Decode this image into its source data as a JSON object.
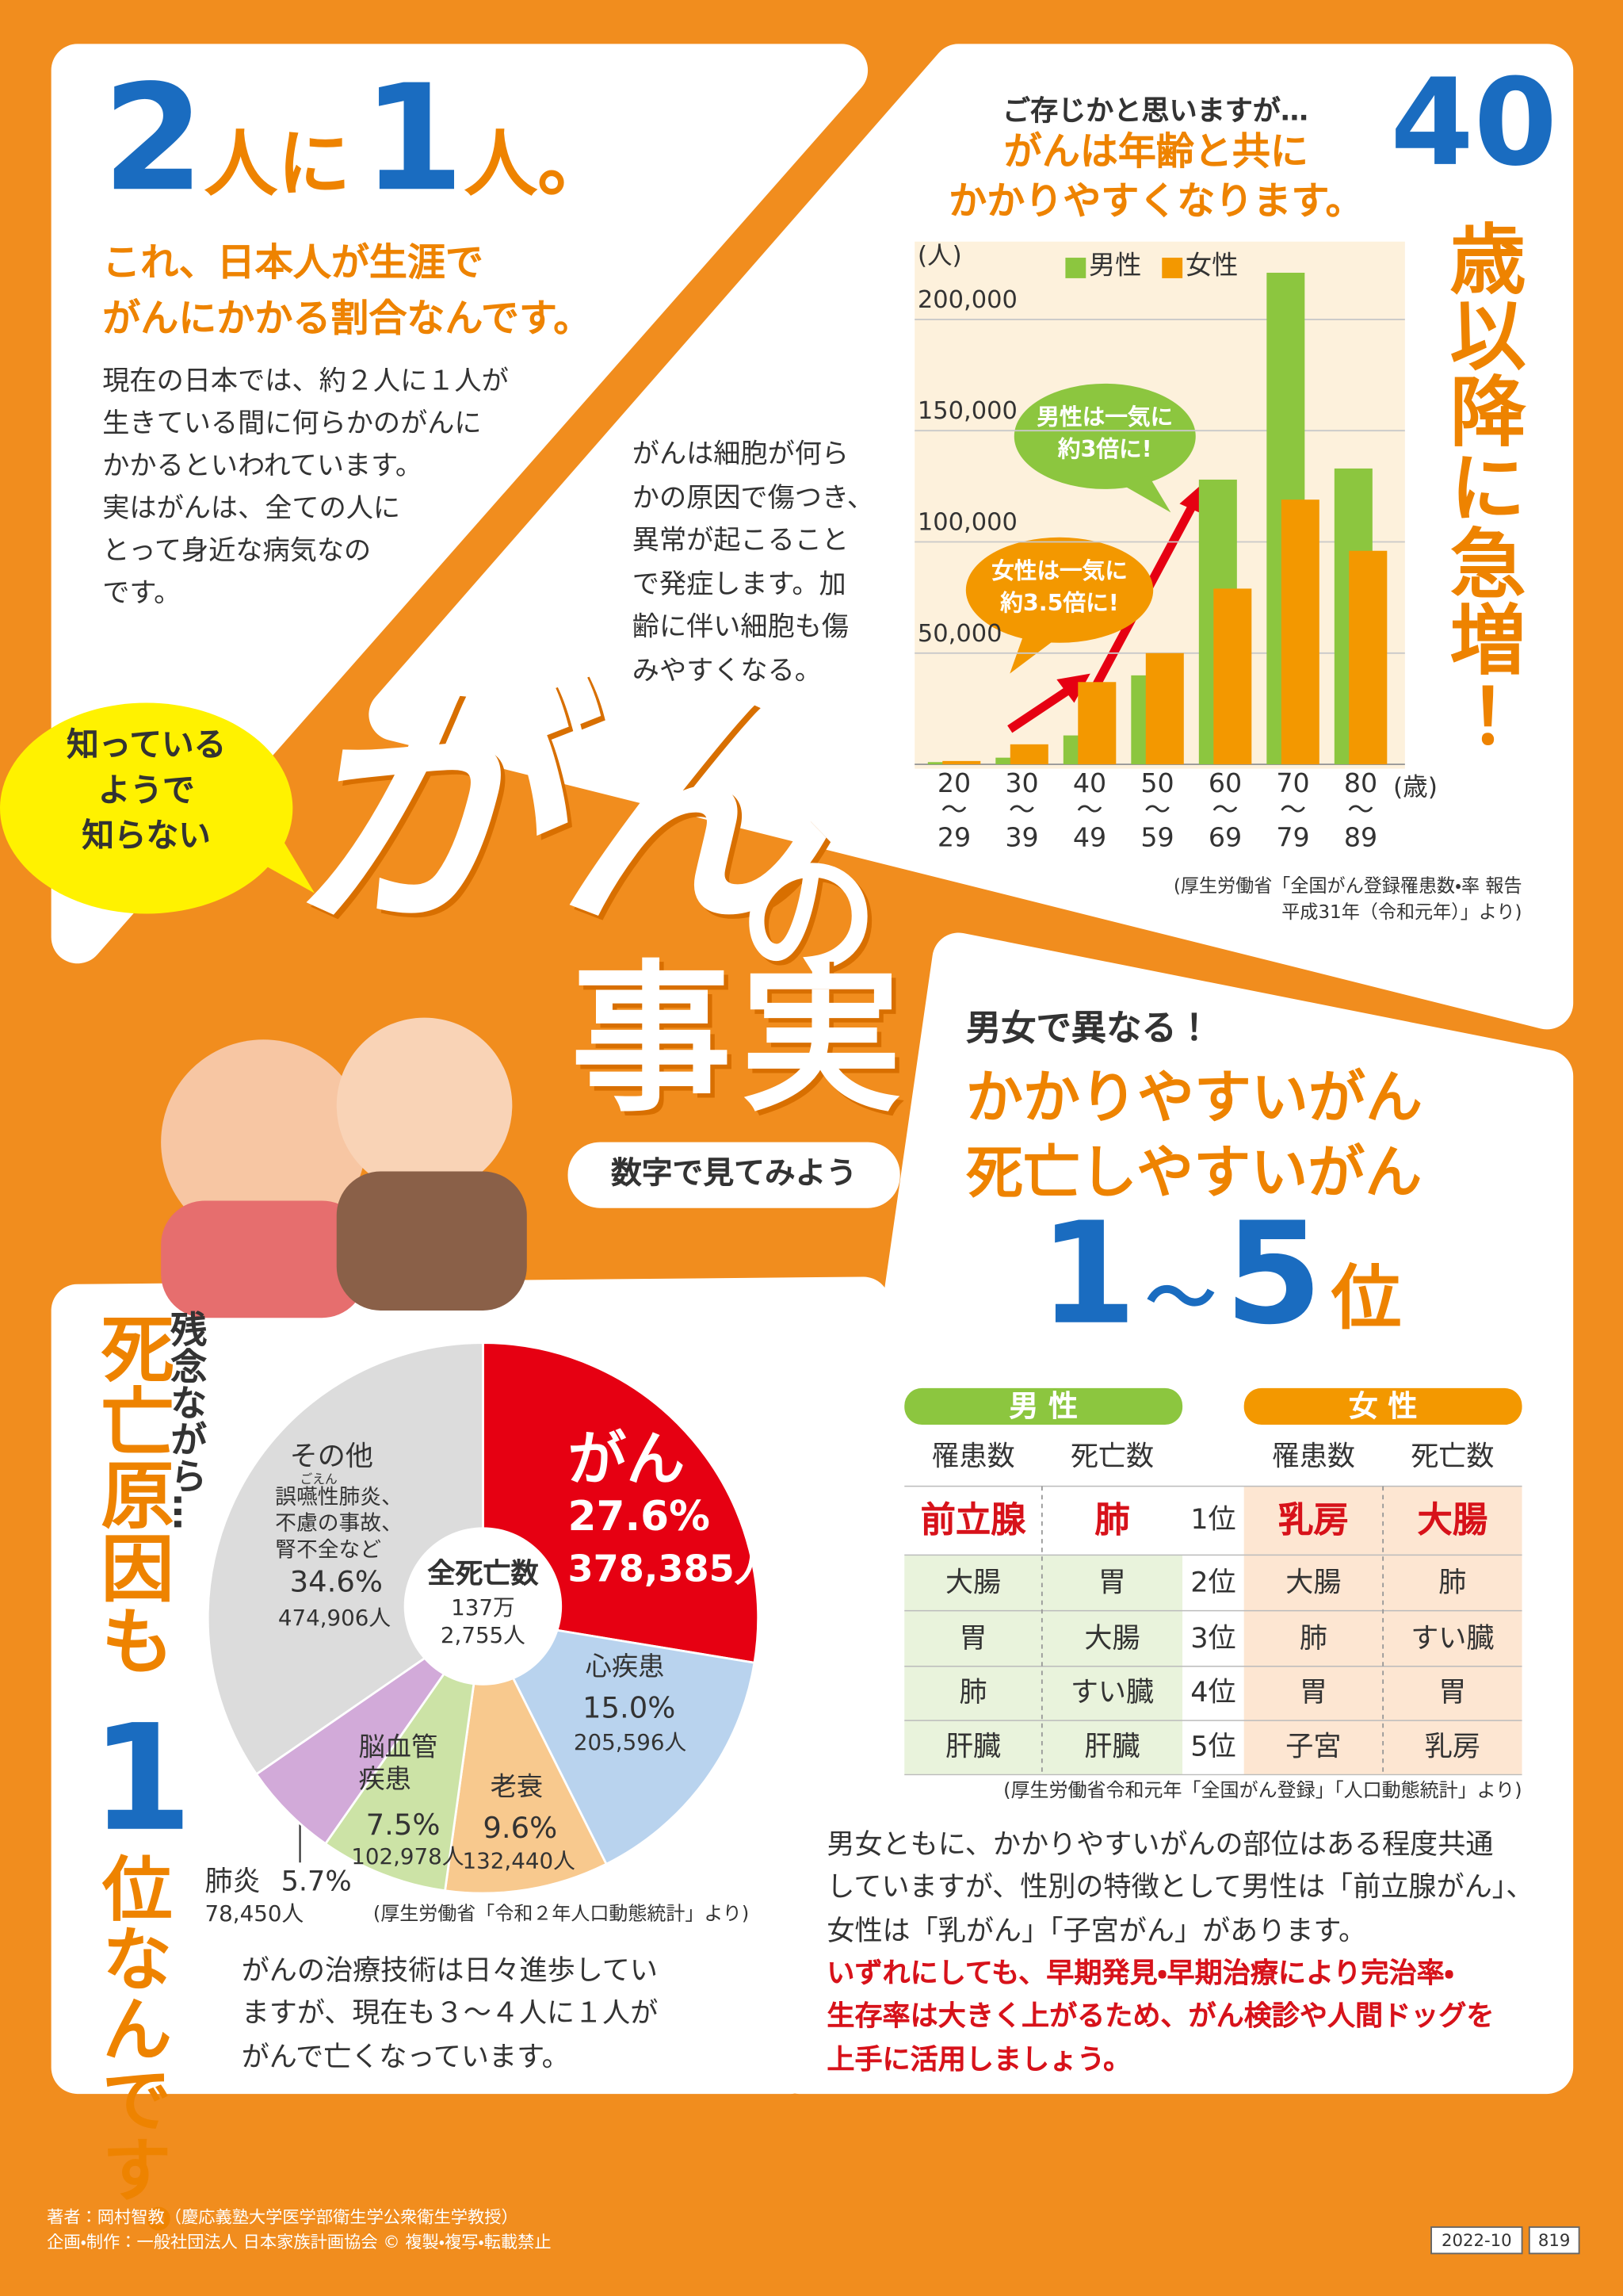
{
  "header": {
    "title_parts": [
      "2",
      "人に",
      "1",
      "人。"
    ],
    "subtitle": "これ、日本人が生涯で\nがんにかかる割合なんです。",
    "body": "現在の日本では、約２人に１人が\n生きている間に何らかのがんに\nかかるといわれています。\n実はがんは、全ての人に\nとって身近な病気なの\nです。"
  },
  "cell_note": "がんは細胞が何ら\nかの原因で傷つき、\n異常が起こること\nで発症します。加\n齢に伴い細胞も傷\nみやすくなる。",
  "age_section": {
    "lead": "ご存じかと思いますが…",
    "headline": "がんは年齢と共に\nかかりやすくなります。",
    "age": "40",
    "side": "歳以降に急増！",
    "callouts": [
      "男性は一気に\n約3倍に!",
      "女性は一気に\n約3.5倍に!"
    ],
    "source": "(厚生労働省「全国がん登録罹患数・率 報告\n平成31年（令和元年）」より)"
  },
  "title": {
    "bubble": "知っている\nようで\n知らない",
    "main": "がん",
    "particle": "の",
    "main2": "事実",
    "pill": "数字で見てみよう"
  },
  "ranking": {
    "lead": "男女で異なる！",
    "headline": "かかりやすいがん\n死亡しやすいがん",
    "range_parts": [
      "1",
      "〜",
      "5",
      "位"
    ],
    "source": "(厚生労働省令和元年「全国がん登録」「人口動態統計」より)",
    "body": "男女ともに、かかりやすいがんの部位はある程度共通\nしていますが、性別の特徴として男性は「前立腺がん」、\n女性は「乳がん」「子宮がん」があります。",
    "emphasis": "いずれにしても、早期発見・早期治療により完治率・\n生存率は大きく上がるため、がん検診や人間ドッグを\n上手に活用しましょう。"
  },
  "table": {
    "groups": [
      "男 性",
      "女 性"
    ],
    "columns": [
      "罹患数",
      "死亡数",
      "罹患数",
      "死亡数"
    ],
    "rows": [
      [
        "前立腺",
        "肺",
        "1位",
        "乳房",
        "大腸"
      ],
      [
        "大腸",
        "胃",
        "2位",
        "大腸",
        "肺"
      ],
      [
        "胃",
        "大腸",
        "3位",
        "肺",
        "すい臓"
      ],
      [
        "肺",
        "すい臓",
        "4位",
        "胃",
        "胃"
      ],
      [
        "肝臓",
        "肝臓",
        "5位",
        "子宮",
        "乳房"
      ]
    ]
  },
  "death_section": {
    "lead": "残念ながら…",
    "headline_parts": [
      "死亡原因も",
      "1",
      "位なんです。"
    ],
    "source": "(厚生労働省「令和２年人口動態統計」より)",
    "body": "がんの治療技術は日々進歩してい\nますが、現在も３～４人に１人が\nがんで亡くなっています。"
  },
  "footer": {
    "credits": "著者：岡村智教（慶応義塾大学医学部衛生学公衆衛生学教授）\n企画・制作：一般社団法人 日本家族計画協会 © 複製・複写・転載禁止",
    "issue": "2022-10",
    "page": "819"
  },
  "chart_data": [
    {
      "type": "bar",
      "y_label": "(人)",
      "x_label": "(歳)",
      "categories": [
        "20\n〜\n29",
        "30\n〜\n39",
        "40\n〜\n49",
        "50\n〜\n59",
        "60\n〜\n69",
        "70\n〜\n79",
        "80\n〜\n89"
      ],
      "series": [
        {
          "name": "男性",
          "color": "#8cc63f",
          "values": [
            1000,
            3000,
            13000,
            40000,
            128000,
            221000,
            133000
          ]
        },
        {
          "name": "女性",
          "color": "#f39800",
          "values": [
            1500,
            9000,
            37000,
            50000,
            79000,
            119000,
            96000
          ]
        }
      ],
      "ylim": [
        0,
        235000
      ],
      "yticks": [
        {
          "value": 50000,
          "label": "50,000"
        },
        {
          "value": 100000,
          "label": "100,000"
        },
        {
          "value": 150000,
          "label": "150,000"
        },
        {
          "value": 200000,
          "label": "200,000"
        }
      ],
      "grid": true
    },
    {
      "type": "pie",
      "center_label": "全死亡数",
      "center_value": "137万\n2,755人",
      "labels": [
        "がん",
        "心疾患",
        "老衰",
        "脳血管\n疾患",
        "肺炎",
        "その他"
      ],
      "values": [
        27.6,
        15.0,
        9.6,
        7.5,
        5.7,
        34.6
      ],
      "value_labels": [
        "27.6%",
        "15.0%",
        "9.6%",
        "7.5%",
        "5.7%",
        "34.6%"
      ],
      "count_labels": [
        "378,385人",
        "205,596人",
        "132,440人",
        "102,978人",
        "78,450人",
        "474,906人"
      ],
      "colors": [
        "#e60012",
        "#b9d3ee",
        "#f8c98e",
        "#cce3a6",
        "#d2aad9",
        "#dcdcdc"
      ],
      "other_note": "誤嚥性肺炎、\n不慮の事故、\n腎不全など",
      "other_note_ruby": "ごえん"
    }
  ]
}
